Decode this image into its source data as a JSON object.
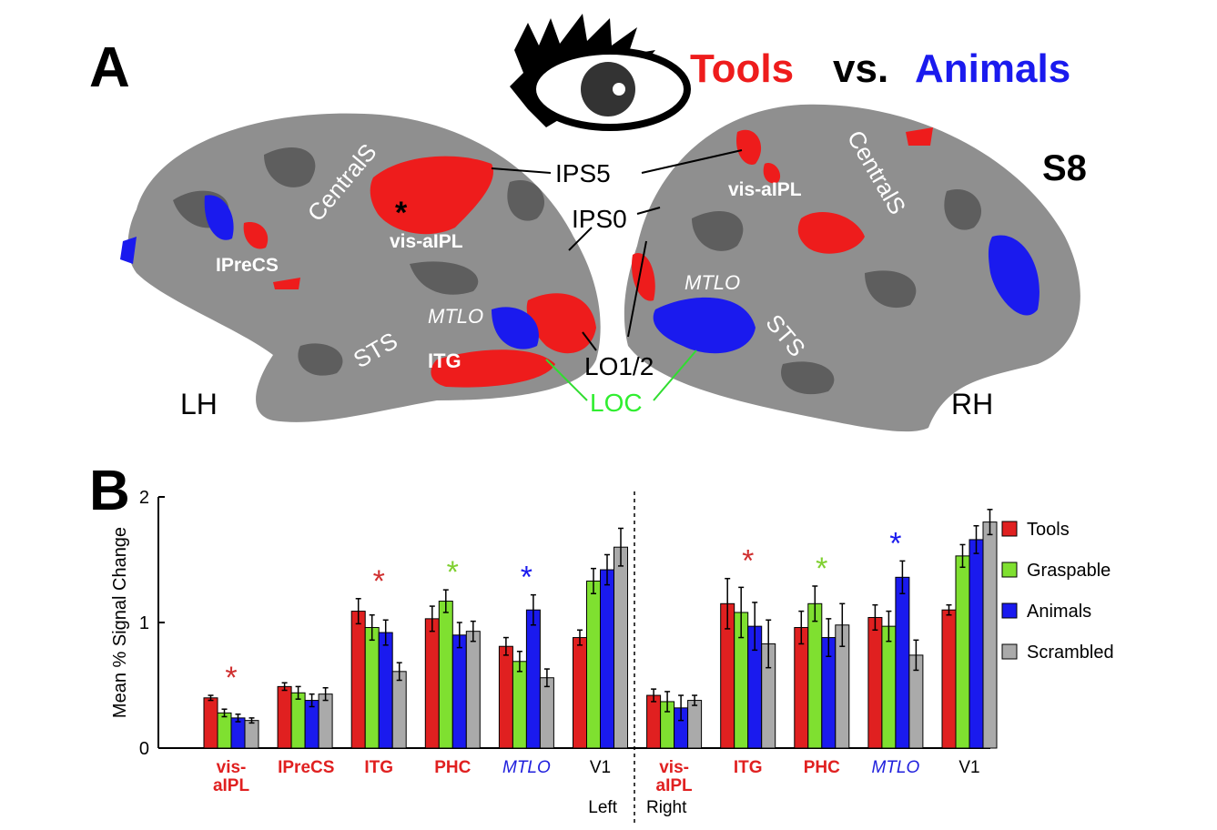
{
  "panel_a": {
    "panel_label": "A",
    "title_parts": [
      "Tools",
      "vs.",
      "Animals"
    ],
    "subject": "S8",
    "labels": [
      "IPS5",
      "IPS0",
      "LO1/2",
      "LOC",
      "LH",
      "RH",
      "CentralS",
      "CentralS",
      "vis-aIPL",
      "vis-aIPL",
      "IPreCS",
      "STS",
      "STS",
      "MTLO",
      "MTLO",
      "ITG",
      "*"
    ]
  },
  "chart_data": {
    "type": "bar",
    "panel_label": "B",
    "y_label": "Mean % Signal Change",
    "categories": [
      "vis-aIPL",
      "IPreCS",
      "ITG",
      "PHC",
      "MTLO",
      "V1",
      "vis-aIPL",
      "ITG",
      "PHC",
      "MTLO",
      "V1"
    ],
    "category_colors": [
      "#e02020",
      "#e02020",
      "#e02020",
      "#e02020",
      "#2020dd",
      "#000000",
      "#e02020",
      "#e02020",
      "#e02020",
      "#2020dd",
      "#000000"
    ],
    "category_italic": [
      false,
      false,
      false,
      false,
      true,
      false,
      false,
      false,
      false,
      true,
      false
    ],
    "category_bold": [
      true,
      true,
      true,
      true,
      false,
      false,
      true,
      true,
      true,
      false,
      false
    ],
    "groups": [
      "Left",
      "Right"
    ],
    "significance": [
      "*",
      null,
      "*",
      "*",
      "*",
      null,
      null,
      "*",
      "*",
      "*",
      null
    ],
    "significance_colors": [
      "#d03030",
      null,
      "#d03030",
      "#7fd030",
      "#1a1aee",
      null,
      null,
      "#d03030",
      "#7fd030",
      "#1a1aee",
      null
    ],
    "series": [
      {
        "name": "Tools",
        "color": "#e02020",
        "values": [
          0.4,
          0.49,
          1.09,
          1.03,
          0.81,
          0.88,
          0.42,
          1.15,
          0.96,
          1.04,
          1.1
        ],
        "errors": [
          0.02,
          0.03,
          0.1,
          0.1,
          0.07,
          0.06,
          0.05,
          0.2,
          0.13,
          0.1,
          0.04
        ]
      },
      {
        "name": "Graspable",
        "color": "#7fe030",
        "values": [
          0.28,
          0.44,
          0.96,
          1.17,
          0.69,
          1.33,
          0.37,
          1.08,
          1.15,
          0.97,
          1.53
        ],
        "errors": [
          0.03,
          0.05,
          0.1,
          0.09,
          0.08,
          0.1,
          0.08,
          0.2,
          0.14,
          0.12,
          0.09
        ]
      },
      {
        "name": "Animals",
        "color": "#1a1aee",
        "values": [
          0.24,
          0.38,
          0.92,
          0.9,
          1.1,
          1.42,
          0.32,
          0.97,
          0.88,
          1.36,
          1.66
        ],
        "errors": [
          0.03,
          0.05,
          0.1,
          0.1,
          0.12,
          0.12,
          0.1,
          0.19,
          0.15,
          0.13,
          0.11
        ]
      },
      {
        "name": "Scrambled",
        "color": "#aaaaaa",
        "values": [
          0.22,
          0.43,
          0.61,
          0.93,
          0.56,
          1.6,
          0.38,
          0.83,
          0.98,
          0.74,
          1.8
        ],
        "errors": [
          0.02,
          0.05,
          0.07,
          0.08,
          0.07,
          0.15,
          0.04,
          0.19,
          0.17,
          0.12,
          0.1
        ]
      }
    ],
    "ylim": [
      0,
      2
    ],
    "yticks": [
      0,
      1,
      2
    ],
    "grid": false,
    "legend": "right"
  }
}
